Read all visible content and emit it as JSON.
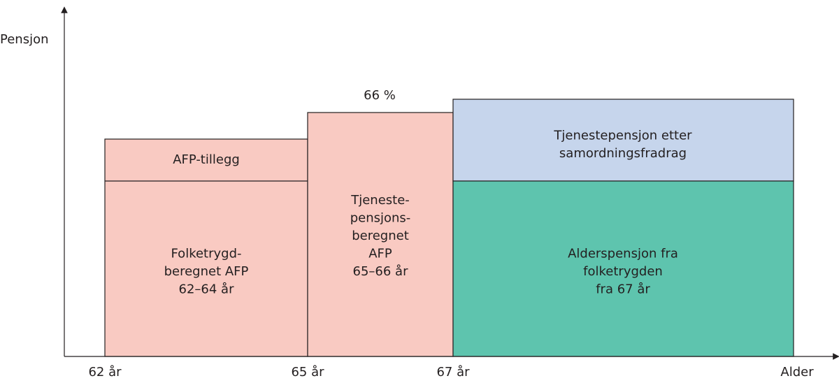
{
  "axis": {
    "y_label": "Pensjon",
    "x_label": "Alder"
  },
  "x_labels": [
    "62 år",
    "65 år",
    "67 år"
  ],
  "annotation": "66 %",
  "blocks": [
    {
      "lines": [
        "AFP-tillegg"
      ]
    },
    {
      "lines": [
        "Folketrygd-",
        "beregnet AFP",
        "62–64 år"
      ]
    },
    {
      "lines": [
        "Tjeneste-",
        "pensjons-",
        "beregnet",
        "AFP",
        "65–66 år"
      ]
    },
    {
      "lines": [
        "Tjenestepensjon etter",
        "samordningsfradrag"
      ]
    },
    {
      "lines": [
        "Alderspensjon fra",
        "folketrygden",
        "fra 67 år"
      ]
    }
  ]
}
